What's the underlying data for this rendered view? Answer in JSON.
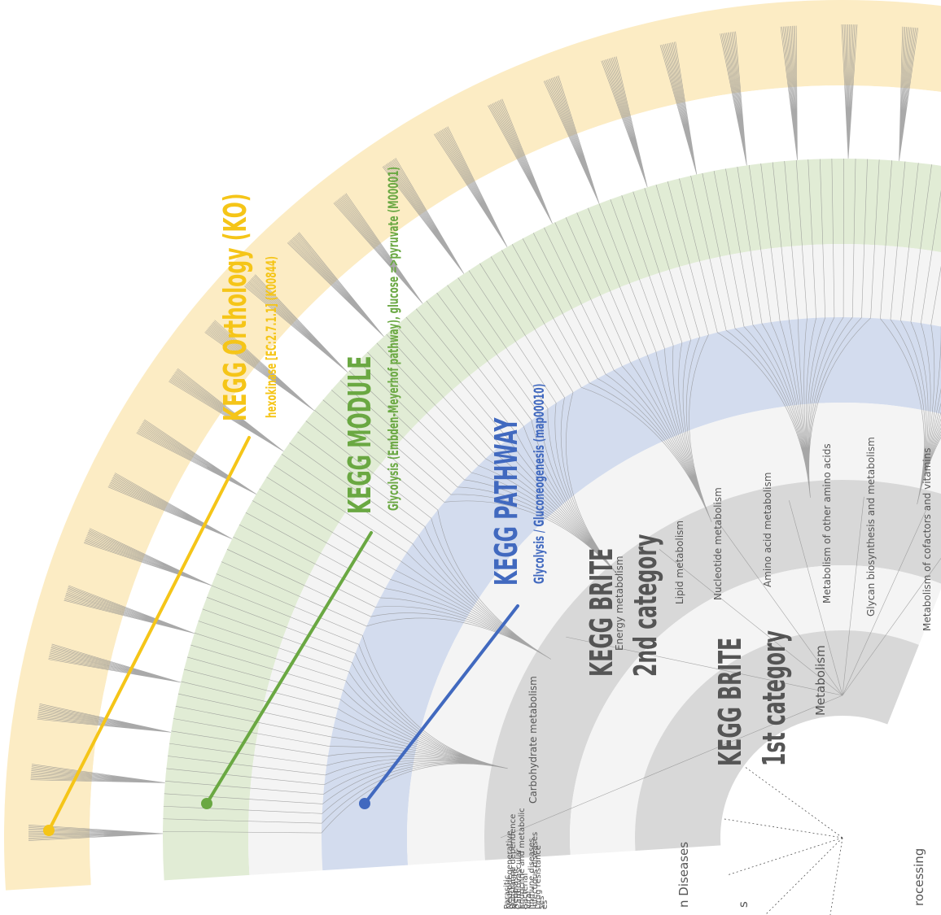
{
  "colors": {
    "ko": "#f5c518",
    "ko_band": "#fcecc4",
    "module": "#6aa842",
    "module_band": "#e1ecd5",
    "pathway": "#4169bf",
    "pathway_band": "#d3dcee",
    "light_band": "#f4f4f4",
    "grey_band": "#d8d8d8",
    "branch": "#8c8c8c",
    "label_dark": "#555555"
  },
  "layers": {
    "ko": {
      "title": "KEGG Orthology (KO)",
      "example": "hexokinase [EC:2.7.1.1] (K00844)"
    },
    "module": {
      "title": "KEGG MODULE",
      "example": "Glycolysis (Embden-Meyerhof pathway), glucose =>pyruvate (M00001)"
    },
    "pathway": {
      "title": "KEGG PATHWAY",
      "example": "Glycolysis / Gluconeogenesis (map00010)"
    },
    "brite2": {
      "title_line1": "KEGG BRITE",
      "title_line2": "2nd category"
    },
    "brite1": {
      "title_line1": "KEGG BRITE",
      "title_line2": "1st category"
    }
  },
  "second_category_labels": [
    "Carbohydrate metabolism",
    "Energy metabolism",
    "Lipid metabolism",
    "Nucleotide metabolism",
    "Amino acid metabolism",
    "Metabolism of other amino acids",
    "Glycan biosynthesis and metabolism",
    "Metabolism of cofactors and vitamins"
  ],
  "first_category_labels": [
    "Metabolism",
    "n Diseases",
    "rocessing",
    "s"
  ],
  "partial_labels": [
    "Neoplastic",
    "Neurodegenerative",
    "Substance dependence",
    "Cardiovascular",
    "Endocrine and metabolic",
    "Bacterial",
    "Viral",
    "Parasitic",
    "Immune diseases",
    "Infectious diseases",
    "Drug resistance",
    "ses",
    "es"
  ]
}
